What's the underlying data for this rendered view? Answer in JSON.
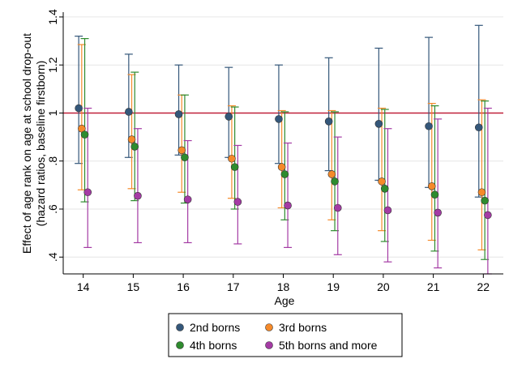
{
  "chart_data": {
    "type": "scatter",
    "xlabel": "Age",
    "ylabel_lines": [
      "Effect of age rank on age at school drop-out",
      "(hazard ratios, baseline firstborn)"
    ],
    "x": [
      14,
      15,
      16,
      17,
      18,
      19,
      20,
      21,
      22
    ],
    "x_tick_labels": [
      "14",
      "15",
      "16",
      "17",
      "18",
      "19",
      "20",
      "21",
      "22"
    ],
    "ylim": [
      0.33,
      1.42
    ],
    "y_ticks": [
      0.4,
      0.6,
      0.8,
      1.0,
      1.2,
      1.4
    ],
    "y_tick_labels": [
      ".4",
      ".6",
      ".8",
      "1",
      "1.2",
      "1.4"
    ],
    "reference_line": 1.0,
    "reference_color": "#c0203a",
    "grid": "horizontal",
    "legend_position": "bottom",
    "series": [
      {
        "name": "2nd borns",
        "color": "#34577a",
        "values": [
          1.02,
          1.005,
          0.995,
          0.985,
          0.975,
          0.965,
          0.955,
          0.945,
          0.94
        ],
        "ci_low": [
          0.79,
          0.815,
          0.825,
          0.815,
          0.79,
          0.76,
          0.72,
          0.69,
          0.65
        ],
        "ci_high": [
          1.32,
          1.245,
          1.2,
          1.19,
          1.2,
          1.23,
          1.27,
          1.315,
          1.365
        ]
      },
      {
        "name": "3rd borns",
        "color": "#f58a2a",
        "values": [
          0.935,
          0.89,
          0.845,
          0.81,
          0.775,
          0.745,
          0.715,
          0.695,
          0.67
        ],
        "ci_low": [
          0.68,
          0.685,
          0.67,
          0.645,
          0.605,
          0.555,
          0.51,
          0.47,
          0.43
        ],
        "ci_high": [
          1.285,
          1.16,
          1.075,
          1.03,
          1.01,
          1.01,
          1.02,
          1.04,
          1.055
        ]
      },
      {
        "name": "4th borns",
        "color": "#2e8b2e",
        "values": [
          0.91,
          0.86,
          0.815,
          0.775,
          0.745,
          0.715,
          0.685,
          0.66,
          0.635
        ],
        "ci_low": [
          0.63,
          0.635,
          0.625,
          0.6,
          0.555,
          0.51,
          0.465,
          0.425,
          0.39
        ],
        "ci_high": [
          1.31,
          1.17,
          1.075,
          1.025,
          1.005,
          1.005,
          1.015,
          1.03,
          1.05
        ]
      },
      {
        "name": "5th borns and more",
        "color": "#a43ba4",
        "values": [
          0.67,
          0.655,
          0.64,
          0.63,
          0.615,
          0.605,
          0.595,
          0.585,
          0.575
        ],
        "ci_low": [
          0.44,
          0.46,
          0.46,
          0.455,
          0.44,
          0.41,
          0.38,
          0.355,
          0.33
        ],
        "ci_high": [
          1.02,
          0.935,
          0.885,
          0.865,
          0.875,
          0.9,
          0.935,
          0.975,
          1.02
        ]
      }
    ]
  }
}
